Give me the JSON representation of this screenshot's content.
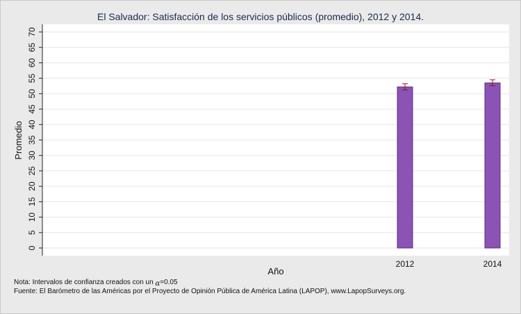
{
  "chart_data": {
    "type": "bar",
    "title": "El Salvador: Satisfacción de los servicios públicos (promedio), 2012 y 2014.",
    "xlabel": "Año",
    "ylabel": "Promedio",
    "categories": [
      "2012",
      "2014"
    ],
    "values": [
      52.2,
      53.5
    ],
    "ci_low": [
      51.2,
      52.6
    ],
    "ci_high": [
      53.2,
      54.5
    ],
    "ylim": [
      0,
      70
    ],
    "yticks": [
      0,
      5,
      10,
      15,
      20,
      25,
      30,
      35,
      40,
      45,
      50,
      55,
      60,
      65,
      70
    ],
    "grid": true,
    "colors": {
      "bar_fill": "#8b53b3",
      "bar_edge": "#5e2d86",
      "error_bar": "#8b1a1a",
      "grid": "#e6e6e6",
      "plot_bg": "#ffffff",
      "page_bg": "#eaeaea"
    }
  },
  "notes": {
    "line1_prefix": "Nota: Intervalos de confianza creados con un ",
    "line1_symbol": "α",
    "line1_suffix": "=0.05",
    "line2": "Fuente: El Barómetro de las Américas por el Proyecto de Opinión Pública de América Latina (LAPOP), www.LapopSurveys.org."
  }
}
